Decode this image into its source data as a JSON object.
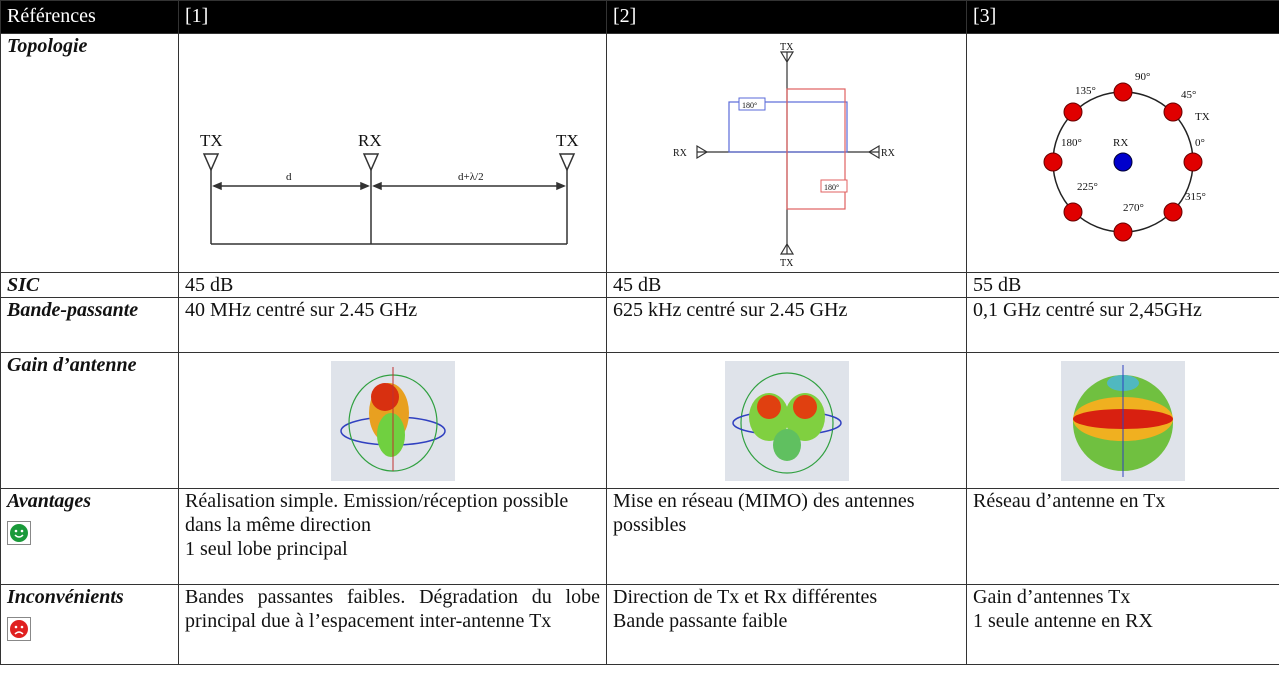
{
  "header": {
    "col0": "Références",
    "col1": "[1]",
    "col2": "[2]",
    "col3": "[3]"
  },
  "rows": {
    "topologie": {
      "label": "Topologie",
      "fig1": {
        "tx_left": "TX",
        "rx": "RX",
        "tx_right": "TX",
        "d": "d",
        "d2": "d+λ/2"
      },
      "fig2": {
        "tx_top": "TX",
        "tx_bottom": "TX",
        "rx_left": "RX",
        "rx_right": "RX",
        "phase_top": "180°",
        "phase_bottom": "180°"
      },
      "fig3": {
        "a135": "135°",
        "a90": "90°",
        "a45": "45°",
        "tx": "TX",
        "a180": "180°",
        "rx": "RX",
        "a0": "0°",
        "a225": "225°",
        "a270": "270°",
        "a315": "315°"
      }
    },
    "sic": {
      "label": "SIC",
      "v1": "45 dB",
      "v2": "45 dB",
      "v3": "55 dB"
    },
    "bande": {
      "label": "Bande-passante",
      "v1": "40 MHz centré sur 2.45 GHz",
      "v2": "625 kHz centré sur 2.45 GHz",
      "v3": "0,1 GHz centré sur 2,45GHz"
    },
    "gain": {
      "label": "Gain d’antenne"
    },
    "avantages": {
      "label": "Avantages",
      "icon": "smiley-happy-icon",
      "v1": "Réalisation simple. Emission/réception possible dans la même direction",
      "v1b": "1 seul lobe principal",
      "v2": "Mise en réseau (MIMO) des antennes possibles",
      "v3": "Réseau d’antenne en Tx"
    },
    "inconvenients": {
      "label": "Inconvénients",
      "icon": "smiley-sad-icon",
      "v1": "Bandes passantes faibles. Dégradation du lobe principal due à l’espacement inter-antenne Tx",
      "v2": "Direction de Tx et Rx différentes",
      "v2b": "Bande passante faible",
      "v3": "Gain d’antennes Tx",
      "v3b": "1 seule antenne en RX"
    }
  },
  "colors": {
    "happy": "#1a9a3a",
    "sad": "#e02020",
    "red_node": "#e00000",
    "blue_node": "#0000cc"
  }
}
